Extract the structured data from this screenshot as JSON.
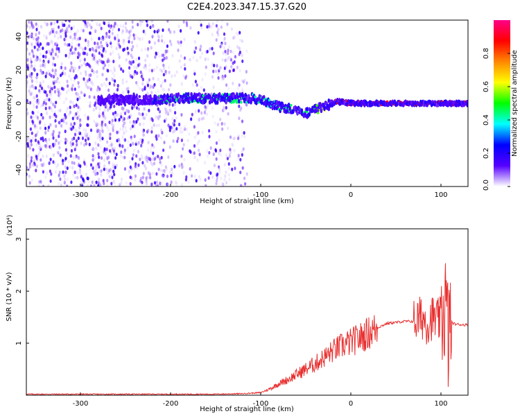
{
  "title": "C2E4.2023.347.15.37.G20",
  "chart_data": [
    {
      "type": "heatmap",
      "title": "C2E4.2023.347.15.37.G20",
      "xlabel": "Height of straight line (km)",
      "ylabel": "Frequency (Hz)",
      "xlim": [
        -360,
        130
      ],
      "ylim": [
        -50,
        50
      ],
      "xticks": [
        -300,
        -200,
        -100,
        0,
        100
      ],
      "yticks": [
        -40,
        -20,
        0,
        20,
        40
      ],
      "colorbar": {
        "label": "Normalized spectral amplitude",
        "range": [
          0.0,
          1.0
        ],
        "ticks": [
          0.0,
          0.2,
          0.4,
          0.6,
          0.8
        ],
        "colors": [
          "#ffffff",
          "#5500ff",
          "#0000ff",
          "#00ffff",
          "#00ff00",
          "#ffff00",
          "#ff8800",
          "#ff0000",
          "#ff0088"
        ]
      },
      "ridge": {
        "x": [
          -220,
          -200,
          -180,
          -160,
          -140,
          -120,
          -110,
          -100,
          -90,
          -80,
          -70,
          -60,
          -50,
          -40,
          -30,
          -20,
          -15,
          0,
          60,
          70,
          80,
          90,
          100,
          110,
          130
        ],
        "y": [
          2,
          3,
          3,
          3,
          3,
          3,
          3,
          2,
          0,
          -2,
          -3,
          -4,
          -6,
          -4,
          -2,
          0,
          1,
          0,
          0,
          0,
          0,
          0,
          0,
          0,
          0
        ],
        "amplitude": [
          0.5,
          0.45,
          0.45,
          0.45,
          0.45,
          0.45,
          0.4,
          0.45,
          0.4,
          0.45,
          0.45,
          0.45,
          0.45,
          0.5,
          0.6,
          0.8,
          0.85,
          0.9,
          0.9,
          0.85,
          0.85,
          0.9,
          0.85,
          0.9,
          0.9
        ]
      }
    },
    {
      "type": "line",
      "xlabel": "Height of straight line (km)",
      "ylabel": "SNR (10 * v/v)",
      "yexponent": "(x10⁴)",
      "xlim": [
        -360,
        130
      ],
      "ylim": [
        0,
        3.2
      ],
      "xticks": [
        -300,
        -200,
        -100,
        0,
        100
      ],
      "yticks": [
        1,
        2,
        3
      ],
      "color": "#e83030",
      "series": [
        {
          "x": [
            -360,
            -300,
            -200,
            -150,
            -120,
            -100,
            -90,
            -80,
            -70,
            -60,
            -50,
            -40,
            -30,
            -20,
            -10,
            0,
            10,
            20,
            30,
            40,
            50,
            60,
            70,
            75,
            80,
            85,
            90,
            95,
            100,
            105,
            108,
            110,
            115,
            120,
            130
          ],
          "y": [
            0.02,
            0.02,
            0.02,
            0.02,
            0.03,
            0.05,
            0.12,
            0.22,
            0.3,
            0.4,
            0.5,
            0.6,
            0.72,
            0.85,
            0.95,
            1.02,
            1.1,
            1.2,
            1.3,
            1.38,
            1.4,
            1.42,
            1.42,
            1.45,
            1.5,
            1.4,
            1.5,
            1.42,
            1.45,
            1.8,
            1.1,
            1.42,
            1.37,
            1.36,
            1.35
          ]
        }
      ]
    }
  ]
}
